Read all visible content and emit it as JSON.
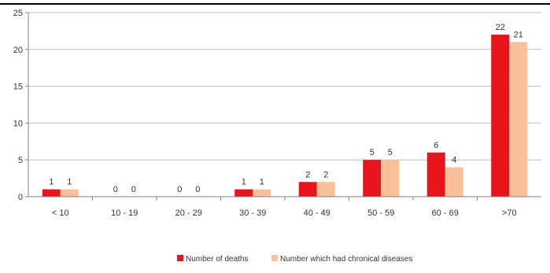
{
  "chart_data": {
    "type": "bar",
    "title": "",
    "xlabel": "",
    "ylabel": "",
    "categories": [
      "< 10",
      "10 - 19",
      "20 - 29",
      "30 - 39",
      "40 - 49",
      "50 - 59",
      "60 - 69",
      ">70"
    ],
    "series": [
      {
        "name": "Number of deaths",
        "values": [
          1,
          0,
          0,
          1,
          2,
          5,
          6,
          22
        ],
        "color": "#e8141b"
      },
      {
        "name": "Number which had chronical  diseases",
        "values": [
          1,
          0,
          0,
          1,
          2,
          5,
          4,
          21
        ],
        "color": "#f9c09a"
      }
    ],
    "data_labels": [
      [
        "1",
        "0",
        "0",
        "1",
        "2",
        "5",
        "6",
        "22"
      ],
      [
        "1",
        "0",
        "0",
        "1",
        "2",
        "5",
        "4",
        "21"
      ]
    ],
    "ylim": [
      0,
      25
    ],
    "yticks": [
      0,
      5,
      10,
      15,
      20,
      25
    ],
    "grid": true,
    "legend_position": "bottom"
  }
}
